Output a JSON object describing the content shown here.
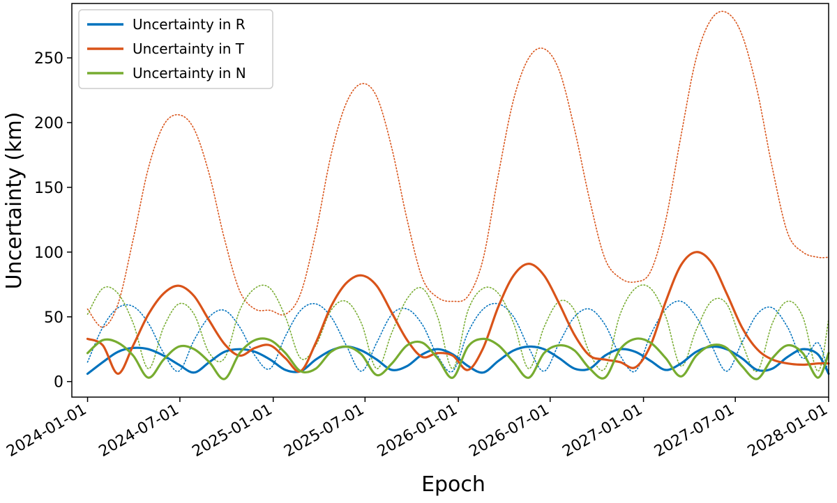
{
  "chart_data": {
    "type": "line",
    "title": "",
    "xlabel": "Epoch",
    "ylabel": "Uncertainty (km)",
    "xlim": [
      "2023-12-01",
      "2028-01-01"
    ],
    "ylim": [
      -12,
      292
    ],
    "x_ticks": [
      "2024-01-01",
      "2024-07-01",
      "2025-01-01",
      "2025-07-01",
      "2026-01-01",
      "2026-07-01",
      "2027-01-01",
      "2027-07-01",
      "2028-01-01"
    ],
    "y_ticks": [
      0,
      50,
      100,
      150,
      200,
      250
    ],
    "grid": false,
    "legend": "top-left",
    "legend_entries": [
      "Uncertainty in R",
      "Uncertainty in T",
      "Uncertainty in N"
    ],
    "series": [
      {
        "name": "Uncertainty in R",
        "color": "#0072bd",
        "style": "solid",
        "x": [
          "2024-01-01",
          "2024-01-31",
          "2024-03-01",
          "2024-03-31",
          "2024-04-30",
          "2024-05-30",
          "2024-06-29",
          "2024-07-29",
          "2024-08-28",
          "2024-09-27",
          "2024-10-27",
          "2024-11-26",
          "2024-12-26",
          "2025-01-25",
          "2025-02-24",
          "2025-03-26",
          "2025-04-25",
          "2025-05-25",
          "2025-06-24",
          "2025-07-24",
          "2025-08-23",
          "2025-09-22",
          "2025-10-22",
          "2025-11-21",
          "2025-12-21",
          "2026-01-20",
          "2026-02-19",
          "2026-03-21",
          "2026-04-20",
          "2026-05-20",
          "2026-06-19",
          "2026-07-19",
          "2026-08-18",
          "2026-09-17",
          "2026-10-17",
          "2026-11-16",
          "2026-12-16",
          "2027-01-15",
          "2027-02-14",
          "2027-03-16",
          "2027-04-15",
          "2027-05-15",
          "2027-06-14",
          "2027-07-14",
          "2027-08-13",
          "2027-09-12",
          "2027-10-12",
          "2027-11-11",
          "2027-12-11",
          "2028-01-01"
        ],
        "values": [
          6,
          15,
          23,
          26,
          25,
          20,
          13,
          7,
          15,
          23,
          25,
          23,
          17,
          9,
          8,
          17,
          24,
          27,
          24,
          17,
          9,
          12,
          21,
          25,
          21,
          12,
          7,
          16,
          24,
          27,
          25,
          18,
          10,
          10,
          20,
          25,
          23,
          16,
          9,
          14,
          23,
          27,
          25,
          18,
          9,
          10,
          19,
          25,
          21,
          6
        ]
      },
      {
        "name": "Uncertainty in T",
        "color": "#d95319",
        "style": "solid",
        "x": [
          "2024-01-01",
          "2024-01-31",
          "2024-03-01",
          "2024-03-31",
          "2024-04-30",
          "2024-05-30",
          "2024-06-29",
          "2024-07-29",
          "2024-08-28",
          "2024-09-27",
          "2024-10-27",
          "2024-11-26",
          "2024-12-26",
          "2025-01-25",
          "2025-02-24",
          "2025-03-26",
          "2025-04-25",
          "2025-05-25",
          "2025-06-24",
          "2025-07-24",
          "2025-08-23",
          "2025-09-22",
          "2025-10-22",
          "2025-11-21",
          "2025-12-21",
          "2026-01-20",
          "2026-02-19",
          "2026-03-21",
          "2026-04-20",
          "2026-05-20",
          "2026-06-19",
          "2026-07-19",
          "2026-08-18",
          "2026-09-17",
          "2026-10-17",
          "2026-11-16",
          "2026-12-16",
          "2027-01-15",
          "2027-02-14",
          "2027-03-16",
          "2027-04-15",
          "2027-05-15",
          "2027-06-14",
          "2027-07-14",
          "2027-08-13",
          "2027-09-12",
          "2027-10-12",
          "2027-11-11",
          "2027-12-11",
          "2028-01-01"
        ],
        "values": [
          33,
          28,
          6,
          28,
          52,
          68,
          74,
          66,
          47,
          29,
          20,
          26,
          28,
          18,
          8,
          30,
          58,
          76,
          82,
          74,
          53,
          32,
          19,
          22,
          20,
          9,
          26,
          58,
          82,
          91,
          82,
          60,
          36,
          20,
          17,
          15,
          11,
          28,
          62,
          90,
          100,
          92,
          68,
          42,
          25,
          17,
          14,
          13,
          14,
          14
        ]
      },
      {
        "name": "Uncertainty in N",
        "color": "#77ac30",
        "style": "solid",
        "x": [
          "2024-01-01",
          "2024-01-31",
          "2024-03-01",
          "2024-03-31",
          "2024-04-30",
          "2024-05-30",
          "2024-06-29",
          "2024-07-29",
          "2024-08-28",
          "2024-09-27",
          "2024-10-27",
          "2024-11-26",
          "2024-12-26",
          "2025-01-25",
          "2025-02-24",
          "2025-03-26",
          "2025-04-25",
          "2025-05-25",
          "2025-06-24",
          "2025-07-24",
          "2025-08-23",
          "2025-09-22",
          "2025-10-22",
          "2025-11-21",
          "2025-12-21",
          "2026-01-20",
          "2026-02-19",
          "2026-03-21",
          "2026-04-20",
          "2026-05-20",
          "2026-06-19",
          "2026-07-19",
          "2026-08-18",
          "2026-09-17",
          "2026-10-17",
          "2026-11-16",
          "2026-12-16",
          "2027-01-15",
          "2027-02-14",
          "2027-03-16",
          "2027-04-15",
          "2027-05-15",
          "2027-06-14",
          "2027-07-14",
          "2027-08-13",
          "2027-09-12",
          "2027-10-12",
          "2027-11-11",
          "2027-12-11",
          "2028-01-01"
        ],
        "values": [
          22,
          32,
          30,
          20,
          3,
          17,
          27,
          25,
          15,
          2,
          22,
          32,
          32,
          22,
          8,
          10,
          23,
          27,
          21,
          5,
          14,
          28,
          30,
          18,
          3,
          27,
          33,
          28,
          15,
          3,
          22,
          28,
          24,
          10,
          3,
          25,
          33,
          30,
          18,
          4,
          20,
          28,
          26,
          12,
          2,
          18,
          28,
          22,
          3,
          22
        ]
      },
      {
        "name": "",
        "color": "#0072bd",
        "style": "dotted",
        "x": [
          "2024-01-01",
          "2024-01-31",
          "2024-03-01",
          "2024-03-31",
          "2024-04-30",
          "2024-05-30",
          "2024-06-29",
          "2024-07-29",
          "2024-08-28",
          "2024-09-27",
          "2024-10-27",
          "2024-11-26",
          "2024-12-26",
          "2025-01-25",
          "2025-02-24",
          "2025-03-26",
          "2025-04-25",
          "2025-05-25",
          "2025-06-24",
          "2025-07-24",
          "2025-08-23",
          "2025-09-22",
          "2025-10-22",
          "2025-11-21",
          "2025-12-21",
          "2026-01-20",
          "2026-02-19",
          "2026-03-21",
          "2026-04-20",
          "2026-05-20",
          "2026-06-19",
          "2026-07-19",
          "2026-08-18",
          "2026-09-17",
          "2026-10-17",
          "2026-11-16",
          "2026-12-16",
          "2027-01-15",
          "2027-02-14",
          "2027-03-16",
          "2027-04-15",
          "2027-05-15",
          "2027-06-14",
          "2027-07-14",
          "2027-08-13",
          "2027-09-12",
          "2027-10-12",
          "2027-11-11",
          "2027-12-11",
          "2028-01-01"
        ],
        "values": [
          15,
          42,
          57,
          58,
          45,
          22,
          8,
          32,
          50,
          55,
          42,
          20,
          10,
          35,
          55,
          60,
          50,
          28,
          8,
          30,
          52,
          56,
          44,
          20,
          8,
          38,
          56,
          60,
          50,
          26,
          8,
          30,
          50,
          56,
          44,
          20,
          8,
          36,
          56,
          62,
          50,
          28,
          8,
          30,
          52,
          57,
          42,
          18,
          30,
          6
        ]
      },
      {
        "name": "",
        "color": "#d95319",
        "style": "dotted",
        "x": [
          "2024-01-01",
          "2024-01-31",
          "2024-03-01",
          "2024-03-31",
          "2024-04-30",
          "2024-05-30",
          "2024-06-29",
          "2024-07-29",
          "2024-08-28",
          "2024-09-27",
          "2024-10-27",
          "2024-11-26",
          "2024-12-26",
          "2025-01-25",
          "2025-02-24",
          "2025-03-26",
          "2025-04-25",
          "2025-05-25",
          "2025-06-24",
          "2025-07-24",
          "2025-08-23",
          "2025-09-22",
          "2025-10-22",
          "2025-11-21",
          "2025-12-21",
          "2026-01-20",
          "2026-02-19",
          "2026-03-21",
          "2026-04-20",
          "2026-05-20",
          "2026-06-19",
          "2026-07-19",
          "2026-08-18",
          "2026-09-17",
          "2026-10-17",
          "2026-11-16",
          "2026-12-16",
          "2027-01-15",
          "2027-02-14",
          "2027-03-16",
          "2027-04-15",
          "2027-05-15",
          "2027-06-14",
          "2027-07-14",
          "2027-08-13",
          "2027-09-12",
          "2027-10-12",
          "2027-11-11",
          "2027-12-11",
          "2028-01-01"
        ],
        "values": [
          56,
          42,
          60,
          110,
          165,
          198,
          206,
          195,
          160,
          110,
          70,
          56,
          55,
          52,
          68,
          115,
          175,
          215,
          230,
          220,
          180,
          125,
          80,
          65,
          62,
          66,
          95,
          160,
          218,
          250,
          257,
          240,
          195,
          140,
          95,
          80,
          77,
          85,
          125,
          190,
          250,
          280,
          285,
          268,
          225,
          165,
          115,
          100,
          96,
          96
        ]
      },
      {
        "name": "",
        "color": "#77ac30",
        "style": "dotted",
        "x": [
          "2024-01-01",
          "2024-01-31",
          "2024-03-01",
          "2024-03-31",
          "2024-04-30",
          "2024-05-30",
          "2024-06-29",
          "2024-07-29",
          "2024-08-28",
          "2024-09-27",
          "2024-10-27",
          "2024-11-26",
          "2024-12-26",
          "2025-01-25",
          "2025-02-24",
          "2025-03-26",
          "2025-04-25",
          "2025-05-25",
          "2025-06-24",
          "2025-07-24",
          "2025-08-23",
          "2025-09-22",
          "2025-10-22",
          "2025-11-21",
          "2025-12-21",
          "2026-01-20",
          "2026-02-19",
          "2026-03-21",
          "2026-04-20",
          "2026-05-20",
          "2026-06-19",
          "2026-07-19",
          "2026-08-18",
          "2026-09-17",
          "2026-10-17",
          "2026-11-16",
          "2026-12-16",
          "2027-01-15",
          "2027-02-14",
          "2027-03-16",
          "2027-04-15",
          "2027-05-15",
          "2027-06-14",
          "2027-07-14",
          "2027-08-13",
          "2027-09-12",
          "2027-10-12",
          "2027-11-11",
          "2027-12-11",
          "2028-01-01"
        ],
        "values": [
          52,
          72,
          68,
          45,
          10,
          42,
          60,
          52,
          22,
          18,
          55,
          72,
          72,
          50,
          18,
          28,
          55,
          62,
          45,
          10,
          38,
          64,
          72,
          50,
          10,
          55,
          72,
          68,
          45,
          10,
          42,
          62,
          55,
          22,
          10,
          52,
          72,
          72,
          50,
          12,
          40,
          62,
          60,
          30,
          8,
          45,
          62,
          50,
          8,
          48
        ]
      }
    ]
  }
}
